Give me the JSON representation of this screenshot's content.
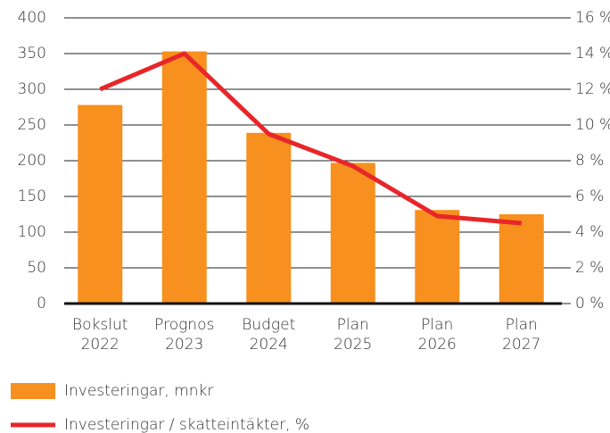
{
  "chart_data": {
    "type": "bar_line",
    "categories": [
      "Bokslut 2022",
      "Prognos 2023",
      "Budget 2024",
      "Plan 2025",
      "Plan 2026",
      "Plan 2027"
    ],
    "series": [
      {
        "name": "Investeringar, mnkr",
        "type": "bar",
        "color": "#f7901e",
        "values": [
          278,
          353,
          239,
          197,
          131,
          125
        ]
      },
      {
        "name": "Investeringar / skatteintäkter, %",
        "type": "line",
        "axis": "y2",
        "color": "#e8262a",
        "values": [
          12.0,
          14.0,
          9.5,
          7.7,
          4.9,
          4.5
        ]
      }
    ],
    "ylim": [
      0,
      400
    ],
    "yticks": [
      0,
      50,
      100,
      150,
      200,
      250,
      300,
      350,
      400
    ],
    "y2lim": [
      0,
      16
    ],
    "y2ticks": [
      {
        "value": 0,
        "label": "0 %"
      },
      {
        "value": 2,
        "label": "2 %"
      },
      {
        "value": 4,
        "label": "4 %"
      },
      {
        "value": 6,
        "label": "6 %"
      },
      {
        "value": 8,
        "label": "8 %"
      },
      {
        "value": 10,
        "label": "10 %"
      },
      {
        "value": 12,
        "label": "12 %"
      },
      {
        "value": 14,
        "label": "14 %"
      },
      {
        "value": 16,
        "label": "16 %"
      }
    ],
    "grid": true
  }
}
